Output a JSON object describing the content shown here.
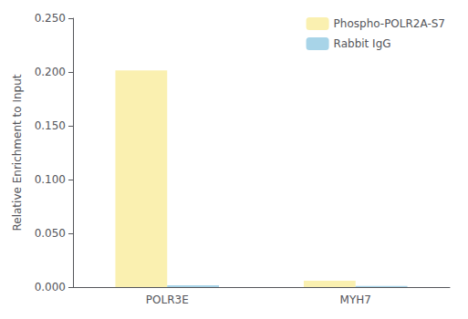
{
  "chart_data": {
    "type": "bar",
    "categories": [
      "POLR3E",
      "MYH7"
    ],
    "series": [
      {
        "name": "Phospho-POLR2A-S7",
        "color": "#FAF0B0",
        "values": [
          0.2015,
          0.006
        ]
      },
      {
        "name": "Rabbit IgG",
        "color": "#A8D4E8",
        "values": [
          0.0018,
          0.001
        ]
      }
    ],
    "ylabel": "Relative Enrichment to Input",
    "ylim": [
      0.0,
      0.25
    ],
    "yticks": [
      {
        "value": 0.0,
        "label": "0.000"
      },
      {
        "value": 0.05,
        "label": "0.050"
      },
      {
        "value": 0.1,
        "label": "0.100"
      },
      {
        "value": 0.15,
        "label": "0.150"
      },
      {
        "value": 0.2,
        "label": "0.200"
      },
      {
        "value": 0.25,
        "label": "0.250"
      }
    ],
    "grid": false,
    "legend": "upper right"
  }
}
